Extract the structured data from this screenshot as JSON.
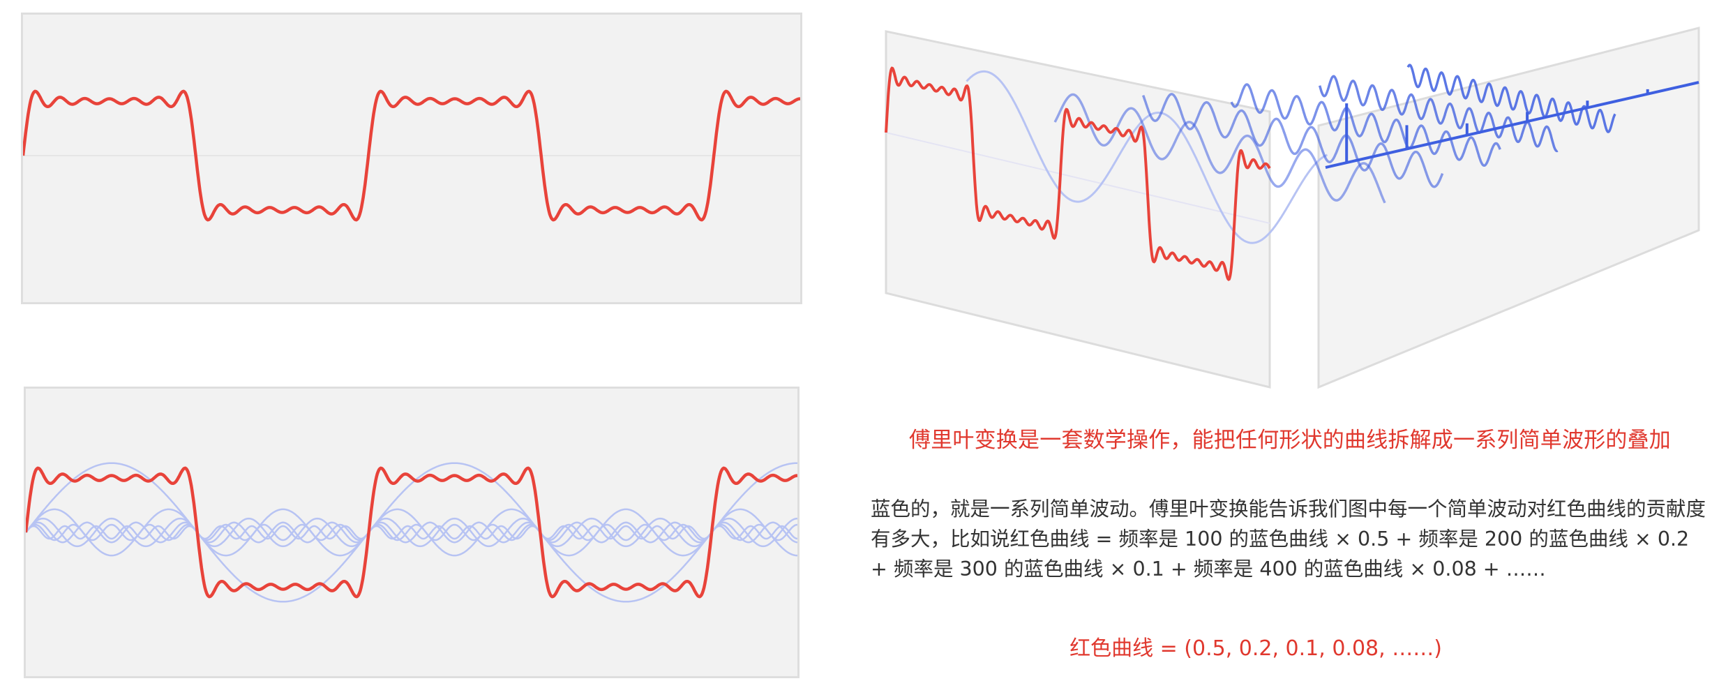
{
  "texts": {
    "caption": "傅里叶变换是一套数学操作，能把任何形状的曲线拆解成一系列简单波形的叠加",
    "description": "蓝色的，就是一系列简单波动。傅里叶变换能告诉我们图中每一个简单波动对红色曲线的贡献度有多大，比如说红色曲线 = 频率是 100 的蓝色曲线 × 0.5 + 频率是 200 的蓝色曲线 × 0.2 + 频率是 300 的蓝色曲线 × 0.1 + 频率是 400 的蓝色曲线 × 0.08 + ……",
    "formula": "红色曲线 = (0.5, 0.2, 0.1, 0.08, ……)"
  },
  "colors": {
    "red_curve": "#e8433a",
    "blue_curve": "#b7c3f3",
    "blue_dark": "#3e5fe0",
    "panel_bg": "#f2f2f2",
    "panel_border": "#dedede"
  },
  "wave": {
    "harmonics": [
      1,
      3,
      5,
      7,
      9,
      11,
      13
    ],
    "periods_shown": 2.25
  },
  "spectrum": {
    "bars": [
      0.5,
      0.2,
      0.1,
      0.08,
      0.06,
      0.04
    ]
  }
}
